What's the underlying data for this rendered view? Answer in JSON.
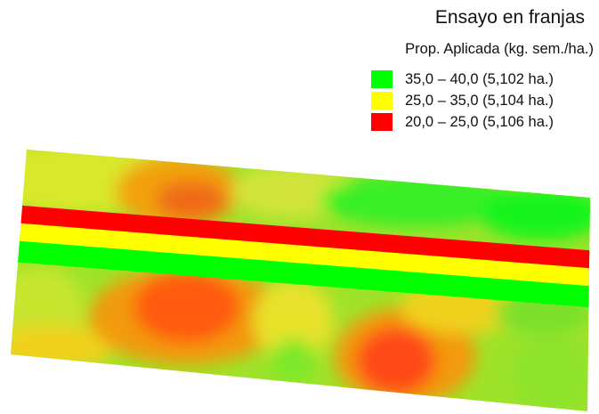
{
  "legend": {
    "title": "Ensayo en franjas",
    "subtitle": "Prop. Aplicada (kg. sem./ha.)",
    "items": [
      {
        "label": "35,0 – 40,0 (5,102 ha.)",
        "color": "#00ff00"
      },
      {
        "label": "25,0 – 35,0 (5,104 ha.)",
        "color": "#ffff00"
      },
      {
        "label": "20,0 – 25,0 (5,106 ha.)",
        "color": "#ff0000"
      }
    ]
  },
  "map": {
    "strip_order_top_to_bottom": [
      "20,0 – 25,0",
      "25,0 – 35,0",
      "35,0 – 40,0"
    ],
    "strip_colors": [
      "#ff0000",
      "#ffff00",
      "#00ff00"
    ]
  }
}
